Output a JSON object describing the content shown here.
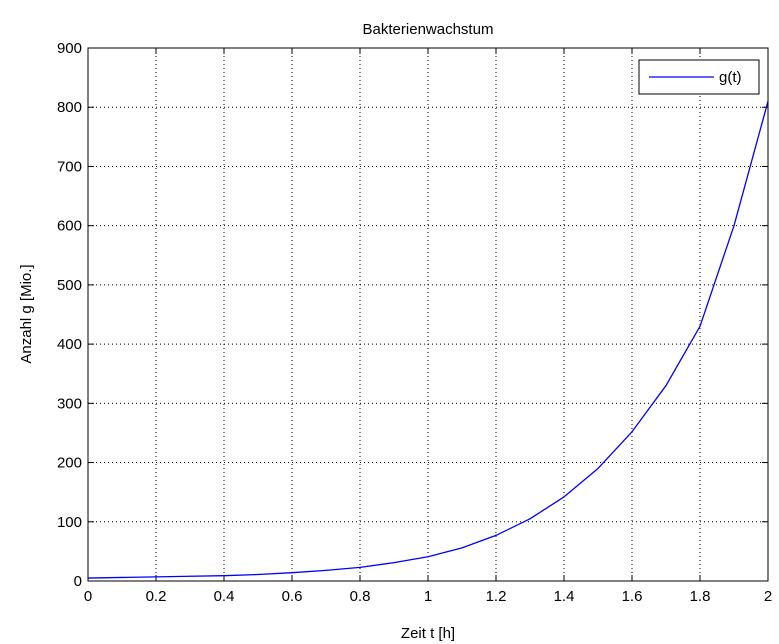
{
  "chart_data": {
    "type": "line",
    "title": "Bakterienwachstum",
    "xlabel": "Zeit t [h]",
    "ylabel": "Anzahl g [Mio.]",
    "xlim": [
      0,
      2
    ],
    "ylim": [
      0,
      900
    ],
    "x_ticks": [
      0,
      0.2,
      0.4,
      0.6,
      0.8,
      1,
      1.2,
      1.4,
      1.6,
      1.8,
      2
    ],
    "x_tick_labels": [
      "0",
      "0.2",
      "0.4",
      "0.6",
      "0.8",
      "1",
      "1.2",
      "1.4",
      "1.6",
      "1.8",
      "2"
    ],
    "y_ticks": [
      0,
      100,
      200,
      300,
      400,
      500,
      600,
      700,
      800,
      900
    ],
    "y_tick_labels": [
      "0",
      "100",
      "200",
      "300",
      "400",
      "500",
      "600",
      "700",
      "800",
      "900"
    ],
    "grid": true,
    "grid_style": "dotted",
    "legend_position": "top-right",
    "series": [
      {
        "name": "g(t)",
        "color": "#0000ff",
        "x": [
          0,
          0.1,
          0.2,
          0.3,
          0.4,
          0.5,
          0.6,
          0.7,
          0.8,
          0.9,
          1.0,
          1.1,
          1.2,
          1.3,
          1.4,
          1.5,
          1.6,
          1.7,
          1.8,
          1.9,
          2.0
        ],
        "y": [
          5,
          6,
          7,
          8,
          9,
          11,
          14,
          18,
          23,
          31,
          41,
          56,
          77,
          105,
          142,
          190,
          252,
          330,
          430,
          600,
          810
        ]
      }
    ]
  }
}
